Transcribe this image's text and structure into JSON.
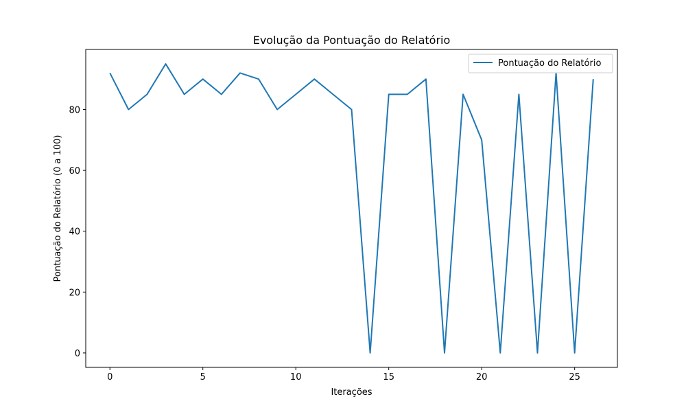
{
  "chart_data": {
    "type": "line",
    "title": "Evolução da Pontuação do Relatório",
    "xlabel": "Iterações",
    "ylabel": "Pontuação do Relatório (0 a 100)",
    "xlim": [
      -1.3,
      27.3
    ],
    "ylim": [
      -4.75,
      99.75
    ],
    "xticks": [
      0,
      5,
      10,
      15,
      20,
      25
    ],
    "yticks": [
      0,
      20,
      40,
      60,
      80
    ],
    "grid": false,
    "legend_position": "top-right",
    "series": [
      {
        "name": "Pontuação do Relatório",
        "color": "#1f77b4",
        "x": [
          0,
          1,
          2,
          3,
          4,
          5,
          6,
          7,
          8,
          9,
          10,
          11,
          12,
          13,
          14,
          15,
          16,
          17,
          18,
          19,
          20,
          21,
          22,
          23,
          24,
          25,
          26
        ],
        "y": [
          92,
          80,
          85,
          95,
          85,
          90,
          85,
          92,
          90,
          80,
          85,
          90,
          85,
          80,
          0,
          85,
          85,
          90,
          0,
          85,
          70,
          0,
          85,
          0,
          92,
          0,
          90
        ]
      }
    ]
  }
}
